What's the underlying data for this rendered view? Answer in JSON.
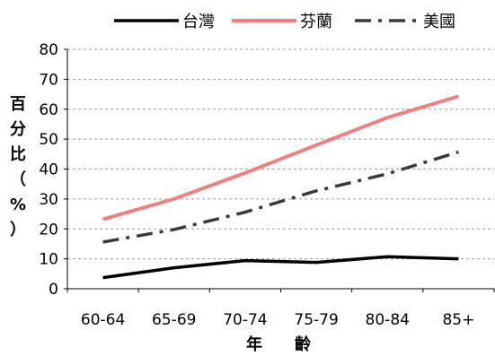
{
  "chart_data": {
    "type": "line",
    "categories": [
      "60-64",
      "65-69",
      "70-74",
      "75-79",
      "80-84",
      "85+"
    ],
    "series": [
      {
        "name": "台灣",
        "values": [
          3.7,
          7.0,
          9.4,
          8.8,
          10.7,
          10.0
        ],
        "color": "#000000",
        "style": "solid"
      },
      {
        "name": "芬蘭",
        "values": [
          23.2,
          30.0,
          38.7,
          48.0,
          57.2,
          64.3
        ],
        "color": "#f08080",
        "style": "solid"
      },
      {
        "name": "美國",
        "values": [
          15.6,
          19.8,
          25.6,
          32.7,
          38.4,
          45.7
        ],
        "color": "#3a3a3a",
        "style": "dashdot"
      }
    ],
    "xlabel": "年　　齡",
    "ylabel": [
      "百",
      "分",
      "比",
      "（",
      "%",
      "）"
    ],
    "ylim": [
      0,
      80
    ],
    "yticks": [
      0,
      10,
      20,
      30,
      40,
      50,
      60,
      70,
      80
    ],
    "grid": true,
    "legend_position": "top"
  }
}
